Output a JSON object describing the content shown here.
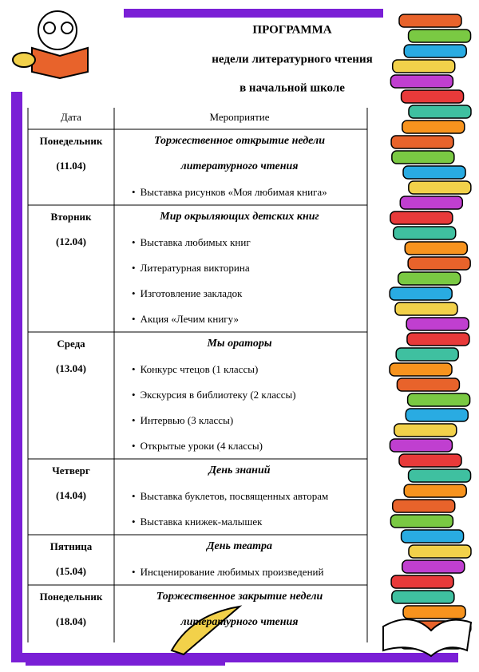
{
  "title": [
    "ПРОГРАММА",
    "недели литературного чтения",
    "в начальной школе"
  ],
  "table": {
    "headers": [
      "Дата",
      "Мероприятие"
    ],
    "rows": [
      {
        "day": "Понедельник",
        "date": "(11.04)",
        "theme": [
          "Торжественное открытие недели",
          "литературного чтения"
        ],
        "items": [
          "Выставка рисунков «Моя любимая книга»"
        ]
      },
      {
        "day": "Вторник",
        "date": "(12.04)",
        "theme": [
          "Мир окрыляющих детских книг"
        ],
        "items": [
          "Выставка любимых книг",
          "Литературная викторина",
          "Изготовление закладок",
          "Акция «Лечим книгу»"
        ]
      },
      {
        "day": "Среда",
        "date": "(13.04)",
        "theme": [
          "Мы  ораторы"
        ],
        "items": [
          "Конкурс чтецов (1 классы)",
          "Экскурсия в библиотеку (2 классы)",
          "Интервью (3 классы)",
          "Открытые уроки (4 классы)"
        ]
      },
      {
        "day": "Четверг",
        "date": "(14.04)",
        "theme": [
          "День знаний"
        ],
        "items": [
          "Выставка буклетов, посвященных авторам",
          "Выставка книжек-малышек"
        ]
      },
      {
        "day": "Пятница",
        "date": "(15.04)",
        "theme": [
          "День театра"
        ],
        "items": [
          "Инсценирование любимых произведений"
        ]
      },
      {
        "day": "Понедельник",
        "date": "(18.04)",
        "theme": [
          "Торжественное закрытие недели",
          "литературного чтения"
        ],
        "items": []
      }
    ]
  }
}
